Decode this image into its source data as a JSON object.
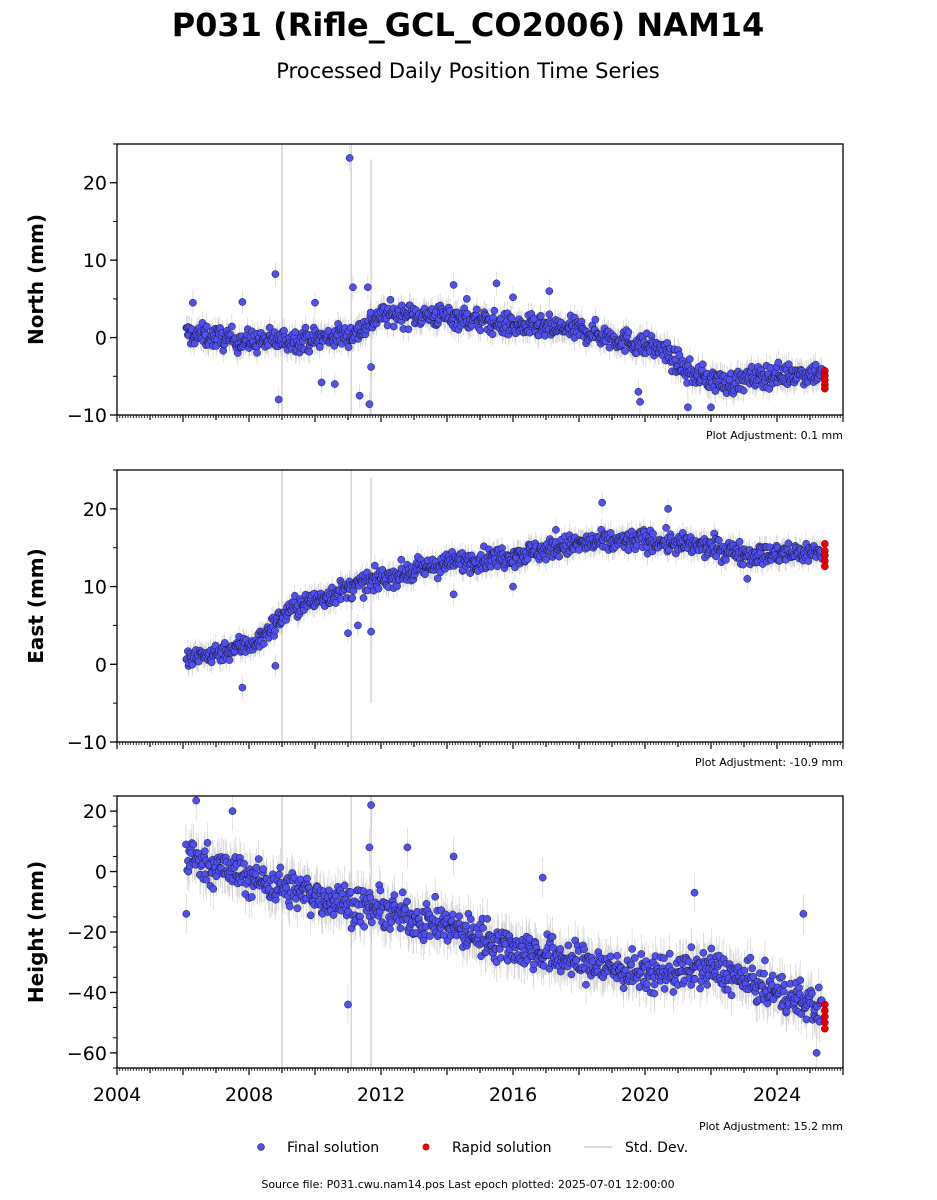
{
  "title": "P031 (Rifle_GCL_CO2006) NAM14",
  "subtitle": "Processed Daily Position Time Series",
  "footer": "Source file: P031.cwu.nam14.pos  Last epoch plotted: 2025-07-01 12:00:00",
  "legend": [
    {
      "label": "Final solution",
      "marker": "dot",
      "color": "#4f4ff2"
    },
    {
      "label": "Rapid solution",
      "marker": "dot",
      "color": "#e60000"
    },
    {
      "label": "Std. Dev.",
      "marker": "line",
      "color": "#cfcfcf"
    }
  ],
  "colors": {
    "final": "#4f4ff2",
    "rapid": "#e60000",
    "stddev": "#b0b0b0",
    "outline": "#111111"
  },
  "chart_data": [
    {
      "type": "scatter",
      "ylabel": "North (mm)",
      "xlim": [
        2004,
        2026
      ],
      "ylim": [
        -10,
        25
      ],
      "yticks": [
        -10,
        0,
        10,
        20
      ],
      "ytick_labels": [
        "−10",
        "0",
        "10",
        "20"
      ],
      "xtick_labels": [],
      "adjustment": "Plot Adjustment: 0.1 mm",
      "trend": [
        [
          2006.1,
          0.5
        ],
        [
          2008,
          -0.5
        ],
        [
          2010,
          -0.2
        ],
        [
          2011.2,
          0.5
        ],
        [
          2012,
          3.0
        ],
        [
          2014,
          2.8
        ],
        [
          2016,
          1.5
        ],
        [
          2018,
          1.0
        ],
        [
          2019.5,
          -0.5
        ],
        [
          2020.5,
          -1.5
        ],
        [
          2021.3,
          -4.5
        ],
        [
          2022.5,
          -6.0
        ],
        [
          2023.5,
          -5.0
        ],
        [
          2025.3,
          -4.5
        ]
      ],
      "noise": 1.3,
      "outliers": [
        [
          2006.3,
          4.5
        ],
        [
          2007.8,
          4.6
        ],
        [
          2008.8,
          8.2
        ],
        [
          2008.9,
          -8.0
        ],
        [
          2010.0,
          4.5
        ],
        [
          2010.2,
          -5.8
        ],
        [
          2010.6,
          -6.0
        ],
        [
          2011.05,
          23.2
        ],
        [
          2011.15,
          6.5
        ],
        [
          2011.35,
          -7.5
        ],
        [
          2011.6,
          6.5
        ],
        [
          2011.65,
          -8.6
        ],
        [
          2011.7,
          -3.8
        ],
        [
          2014.2,
          6.8
        ],
        [
          2014.6,
          5.0
        ],
        [
          2015.5,
          7.0
        ],
        [
          2016.0,
          5.2
        ],
        [
          2017.1,
          6.0
        ],
        [
          2019.8,
          -7.0
        ],
        [
          2019.85,
          -8.3
        ],
        [
          2021.3,
          -9.0
        ],
        [
          2022.0,
          -9.0
        ]
      ],
      "std_spikes": [
        {
          "x": 2009.0,
          "y0": -10,
          "y1": 25
        },
        {
          "x": 2011.1,
          "y0": -10,
          "y1": 25
        },
        {
          "x": 2011.7,
          "y0": -10,
          "y1": 23
        }
      ],
      "rapid": {
        "x": 2025.45,
        "values": [
          -4.3,
          -4.9,
          -5.5,
          -6.1,
          -6.6
        ]
      }
    },
    {
      "type": "scatter",
      "ylabel": "East (mm)",
      "xlim": [
        2004,
        2026
      ],
      "ylim": [
        -10,
        25
      ],
      "yticks": [
        -10,
        0,
        10,
        20
      ],
      "ytick_labels": [
        "−10",
        "0",
        "10",
        "20"
      ],
      "xtick_labels": [],
      "adjustment": "Plot Adjustment: -10.9 mm",
      "trend": [
        [
          2006.1,
          0.5
        ],
        [
          2007.5,
          2.0
        ],
        [
          2008.3,
          3.0
        ],
        [
          2009.2,
          7.0
        ],
        [
          2010.5,
          9.0
        ],
        [
          2012,
          11.0
        ],
        [
          2014,
          13.0
        ],
        [
          2016,
          14.0
        ],
        [
          2018,
          15.5
        ],
        [
          2020,
          16.0
        ],
        [
          2022,
          15.0
        ],
        [
          2023.5,
          14.0
        ],
        [
          2025.3,
          14.5
        ]
      ],
      "noise": 1.2,
      "outliers": [
        [
          2007.8,
          -3.0
        ],
        [
          2008.8,
          -0.2
        ],
        [
          2011.0,
          4.0
        ],
        [
          2011.3,
          5.0
        ],
        [
          2011.7,
          4.2
        ],
        [
          2014.2,
          9.0
        ],
        [
          2016.0,
          10.0
        ],
        [
          2017.3,
          17.3
        ],
        [
          2018.7,
          20.8
        ],
        [
          2020.7,
          20.0
        ],
        [
          2023.1,
          11.0
        ]
      ],
      "std_spikes": [
        {
          "x": 2009.0,
          "y0": -10,
          "y1": 25
        },
        {
          "x": 2011.1,
          "y0": -10,
          "y1": 25
        },
        {
          "x": 2011.7,
          "y0": -5,
          "y1": 24
        }
      ],
      "rapid": {
        "x": 2025.45,
        "values": [
          15.5,
          14.6,
          14.0,
          13.3,
          12.6
        ]
      }
    },
    {
      "type": "scatter",
      "ylabel": "Height (mm)",
      "xlim": [
        2004,
        2026
      ],
      "ylim": [
        -65,
        25
      ],
      "yticks": [
        -60,
        -40,
        -20,
        0,
        20
      ],
      "ytick_labels": [
        "−60",
        "−40",
        "−20",
        "0",
        "20"
      ],
      "xtick_values": [
        2004,
        2008,
        2012,
        2016,
        2020,
        2024
      ],
      "xtick_labels": [
        "2004",
        "2008",
        "2012",
        "2016",
        "2020",
        "2024"
      ],
      "adjustment": "Plot Adjustment: 15.2 mm",
      "trend": [
        [
          2006.1,
          5.0
        ],
        [
          2008,
          -2.0
        ],
        [
          2010,
          -8.0
        ],
        [
          2012,
          -13.0
        ],
        [
          2014,
          -18.0
        ],
        [
          2016,
          -25.0
        ],
        [
          2018,
          -30.0
        ],
        [
          2020,
          -34.0
        ],
        [
          2022,
          -32.0
        ],
        [
          2024,
          -40.0
        ],
        [
          2025.3,
          -45.0
        ]
      ],
      "noise": 5.5,
      "outliers": [
        [
          2006.1,
          -14.0
        ],
        [
          2006.4,
          23.5
        ],
        [
          2007.5,
          20.0
        ],
        [
          2011.0,
          -44.0
        ],
        [
          2011.7,
          22.0
        ],
        [
          2011.65,
          8.0
        ],
        [
          2012.8,
          8.0
        ],
        [
          2014.2,
          5.0
        ],
        [
          2016.9,
          -2.0
        ],
        [
          2021.5,
          -7.0
        ],
        [
          2024.8,
          -14.0
        ],
        [
          2025.2,
          -60.0
        ]
      ],
      "std_spikes": [
        {
          "x": 2009.0,
          "y0": -65,
          "y1": 25
        },
        {
          "x": 2011.1,
          "y0": -65,
          "y1": 25
        },
        {
          "x": 2011.7,
          "y0": -65,
          "y1": 25
        }
      ],
      "rapid": {
        "x": 2025.45,
        "values": [
          -44.0,
          -46.0,
          -48.0,
          -50.0,
          -52.0
        ]
      }
    }
  ]
}
